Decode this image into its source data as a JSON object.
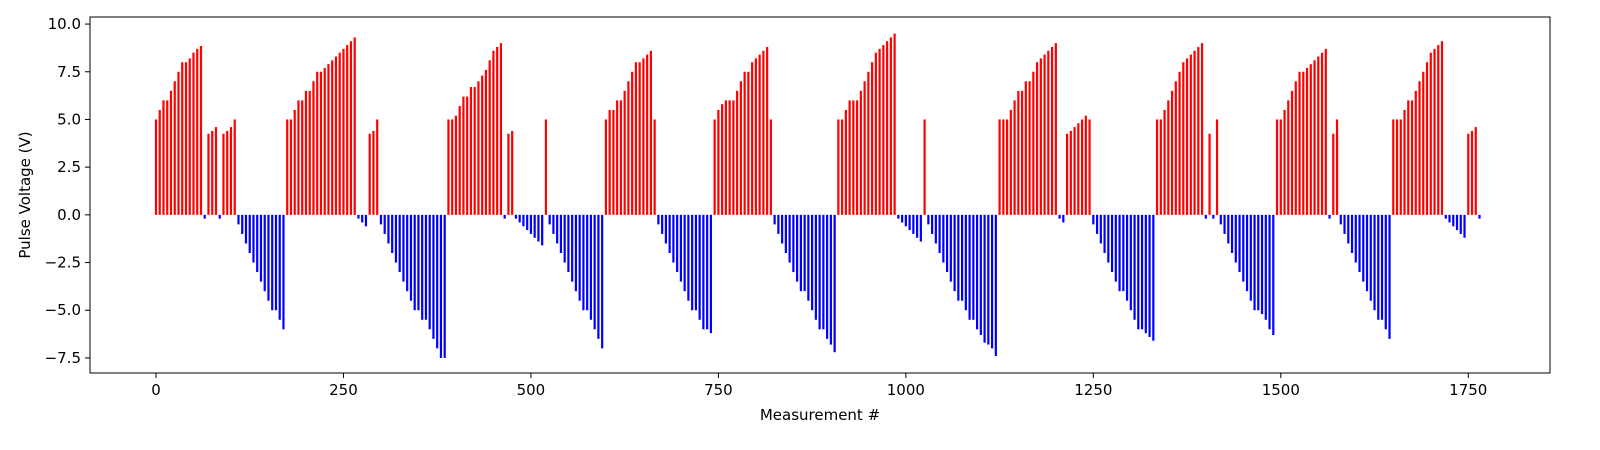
{
  "chart_data": {
    "type": "bar",
    "xlabel": "Measurement #",
    "ylabel": "Pulse Voltage (V)",
    "positive_color": "#ff0000",
    "negative_color": "#0000ff",
    "xlim": [
      -88,
      1859
    ],
    "ylim": [
      -8.29,
      10.37
    ],
    "xticks": [
      0,
      250,
      500,
      750,
      1000,
      1250,
      1500,
      1750
    ],
    "yticks": [
      {
        "value": -7.5,
        "label": "−7.5"
      },
      {
        "value": -5.0,
        "label": "−5.0"
      },
      {
        "value": -2.5,
        "label": "−2.5"
      },
      {
        "value": 0.0,
        "label": "0.0"
      },
      {
        "value": 2.5,
        "label": "2.5"
      },
      {
        "value": 5.0,
        "label": "5.0"
      },
      {
        "value": 7.5,
        "label": "7.5"
      },
      {
        "value": 10.0,
        "label": "10.0"
      }
    ],
    "x": [
      0,
      5,
      10,
      15,
      20,
      25,
      30,
      35,
      40,
      45,
      50,
      55,
      60,
      65,
      70,
      75,
      80,
      85,
      90,
      95,
      100,
      105,
      110,
      115,
      120,
      125,
      130,
      135,
      140,
      145,
      150,
      155,
      160,
      165,
      170,
      175,
      180,
      185,
      190,
      195,
      200,
      205,
      210,
      215,
      220,
      225,
      230,
      235,
      240,
      245,
      250,
      255,
      260,
      265,
      270,
      275,
      280,
      285,
      290,
      295,
      300,
      305,
      310,
      315,
      320,
      325,
      330,
      335,
      340,
      345,
      350,
      355,
      360,
      365,
      370,
      375,
      380,
      385,
      390,
      395,
      400,
      405,
      410,
      415,
      420,
      425,
      430,
      435,
      440,
      445,
      450,
      455,
      460,
      465,
      470,
      475,
      480,
      485,
      490,
      495,
      500,
      505,
      510,
      515,
      520,
      525,
      530,
      535,
      540,
      545,
      550,
      555,
      560,
      565,
      570,
      575,
      580,
      585,
      590,
      595,
      600,
      605,
      610,
      615,
      620,
      625,
      630,
      635,
      640,
      645,
      650,
      655,
      660,
      665,
      670,
      675,
      680,
      685,
      690,
      695,
      700,
      705,
      710,
      715,
      720,
      725,
      730,
      735,
      740,
      745,
      750,
      755,
      760,
      765,
      770,
      775,
      780,
      785,
      790,
      795,
      800,
      805,
      810,
      815,
      820,
      825,
      830,
      835,
      840,
      845,
      850,
      855,
      860,
      865,
      870,
      875,
      880,
      885,
      890,
      895,
      900,
      905,
      910,
      915,
      920,
      925,
      930,
      935,
      940,
      945,
      950,
      955,
      960,
      965,
      970,
      975,
      980,
      985,
      990,
      995,
      1000,
      1005,
      1010,
      1015,
      1020,
      1025,
      1030,
      1035,
      1040,
      1045,
      1050,
      1055,
      1060,
      1065,
      1070,
      1075,
      1080,
      1085,
      1090,
      1095,
      1100,
      1105,
      1110,
      1115,
      1120,
      1125,
      1130,
      1135,
      1140,
      1145,
      1150,
      1155,
      1160,
      1165,
      1170,
      1175,
      1180,
      1185,
      1190,
      1195,
      1200,
      1205,
      1210,
      1215,
      1220,
      1225,
      1230,
      1235,
      1240,
      1245,
      1250,
      1255,
      1260,
      1265,
      1270,
      1275,
      1280,
      1285,
      1290,
      1295,
      1300,
      1305,
      1310,
      1315,
      1320,
      1325,
      1330,
      1335,
      1340,
      1345,
      1350,
      1355,
      1360,
      1365,
      1370,
      1375,
      1380,
      1385,
      1390,
      1395,
      1400,
      1405,
      1410,
      1415,
      1420,
      1425,
      1430,
      1435,
      1440,
      1445,
      1450,
      1455,
      1460,
      1465,
      1470,
      1475,
      1480,
      1485,
      1490,
      1495,
      1500,
      1505,
      1510,
      1515,
      1520,
      1525,
      1530,
      1535,
      1540,
      1545,
      1550,
      1555,
      1560,
      1565,
      1570,
      1575,
      1580,
      1585,
      1590,
      1595,
      1600,
      1605,
      1610,
      1615,
      1620,
      1625,
      1630,
      1635,
      1640,
      1645,
      1650,
      1655,
      1660,
      1665,
      1670,
      1675,
      1680,
      1685,
      1690,
      1695,
      1700,
      1705,
      1710,
      1715,
      1720,
      1725,
      1730,
      1735,
      1740,
      1745,
      1750,
      1755,
      1760,
      1765
    ],
    "values": [
      5.0,
      5.5,
      6.0,
      6.0,
      6.5,
      7.0,
      7.5,
      8.0,
      8.0,
      8.2,
      8.5,
      8.7,
      8.85,
      -0.2,
      4.25,
      4.4,
      4.6,
      -0.2,
      4.25,
      4.4,
      4.6,
      5.0,
      -0.5,
      -1.0,
      -1.5,
      -2.0,
      -2.5,
      -3.0,
      -3.5,
      -4.0,
      -4.5,
      -5.0,
      -5.0,
      -5.5,
      -6.0,
      5.0,
      5.0,
      5.5,
      6.0,
      6.0,
      6.5,
      6.5,
      7.0,
      7.5,
      7.5,
      7.7,
      7.9,
      8.1,
      8.3,
      8.5,
      8.7,
      8.9,
      9.1,
      9.3,
      -0.2,
      -0.4,
      -0.6,
      4.25,
      4.4,
      5.0,
      -0.5,
      -1.0,
      -1.5,
      -2.0,
      -2.5,
      -3.0,
      -3.5,
      -4.0,
      -4.5,
      -5.0,
      -5.0,
      -5.5,
      -5.5,
      -6.0,
      -6.5,
      -7.0,
      -7.5,
      -7.5,
      5.0,
      5.0,
      5.2,
      5.7,
      6.2,
      6.2,
      6.7,
      6.7,
      7.0,
      7.3,
      7.6,
      8.1,
      8.6,
      8.8,
      9.0,
      -0.2,
      4.25,
      4.4,
      -0.2,
      -0.4,
      -0.6,
      -0.8,
      -1.0,
      -1.2,
      -1.4,
      -1.6,
      5.0,
      -0.5,
      -1.0,
      -1.5,
      -2.0,
      -2.5,
      -3.0,
      -3.5,
      -4.0,
      -4.5,
      -5.0,
      -5.0,
      -5.5,
      -6.0,
      -6.5,
      -7.0,
      5.0,
      5.5,
      5.5,
      6.0,
      6.0,
      6.5,
      7.0,
      7.5,
      8.0,
      8.0,
      8.2,
      8.4,
      8.6,
      5.0,
      -0.5,
      -1.0,
      -1.5,
      -2.0,
      -2.5,
      -3.0,
      -3.5,
      -4.0,
      -4.5,
      -5.0,
      -5.0,
      -5.5,
      -6.0,
      -6.0,
      -6.2,
      5.0,
      5.5,
      5.8,
      6.0,
      6.0,
      6.0,
      6.5,
      7.0,
      7.5,
      7.5,
      8.0,
      8.2,
      8.4,
      8.6,
      8.8,
      5.0,
      -0.5,
      -1.0,
      -1.5,
      -2.0,
      -2.5,
      -3.0,
      -3.5,
      -4.0,
      -4.0,
      -4.5,
      -5.0,
      -5.5,
      -6.0,
      -6.0,
      -6.5,
      -6.8,
      -7.2,
      5.0,
      5.0,
      5.5,
      6.0,
      6.0,
      6.0,
      6.5,
      7.0,
      7.5,
      8.0,
      8.5,
      8.7,
      8.9,
      9.1,
      9.3,
      9.5,
      -0.2,
      -0.4,
      -0.6,
      -0.8,
      -1.0,
      -1.2,
      -1.4,
      5.0,
      -0.5,
      -1.0,
      -1.5,
      -2.0,
      -2.5,
      -3.0,
      -3.5,
      -4.0,
      -4.5,
      -4.5,
      -5.0,
      -5.5,
      -5.5,
      -6.0,
      -6.3,
      -6.7,
      -6.8,
      -7.0,
      -7.4,
      5.0,
      5.0,
      5.0,
      5.5,
      6.0,
      6.5,
      6.5,
      7.0,
      7.0,
      7.5,
      8.0,
      8.2,
      8.4,
      8.6,
      8.8,
      9.0,
      -0.2,
      -0.4,
      4.25,
      4.4,
      4.6,
      4.8,
      5.0,
      5.2,
      5.0,
      -0.5,
      -1.0,
      -1.5,
      -2.0,
      -2.5,
      -3.0,
      -3.5,
      -4.0,
      -4.0,
      -4.5,
      -5.0,
      -5.5,
      -6.0,
      -6.0,
      -6.2,
      -6.4,
      -6.6,
      5.0,
      5.0,
      5.5,
      6.0,
      6.5,
      7.0,
      7.5,
      8.0,
      8.2,
      8.4,
      8.6,
      8.8,
      9.0,
      -0.2,
      4.25,
      -0.2,
      5.0,
      -0.5,
      -1.0,
      -1.5,
      -2.0,
      -2.5,
      -3.0,
      -3.5,
      -4.0,
      -4.5,
      -5.0,
      -5.0,
      -5.2,
      -5.5,
      -6.0,
      -6.3,
      5.0,
      5.0,
      5.5,
      6.0,
      6.5,
      7.0,
      7.5,
      7.5,
      7.7,
      7.9,
      8.1,
      8.3,
      8.5,
      8.7,
      -0.2,
      4.25,
      5.0,
      -0.5,
      -1.0,
      -1.5,
      -2.0,
      -2.5,
      -3.0,
      -3.5,
      -4.0,
      -4.5,
      -5.0,
      -5.5,
      -5.5,
      -6.0,
      -6.5,
      5.0,
      5.0,
      5.0,
      5.5,
      6.0,
      6.0,
      6.5,
      7.0,
      7.5,
      8.0,
      8.5,
      8.7,
      8.9,
      9.1,
      -0.2,
      -0.4,
      -0.6,
      -0.8,
      -1.0,
      -1.2,
      4.25,
      4.4,
      4.6,
      -0.2
    ]
  }
}
